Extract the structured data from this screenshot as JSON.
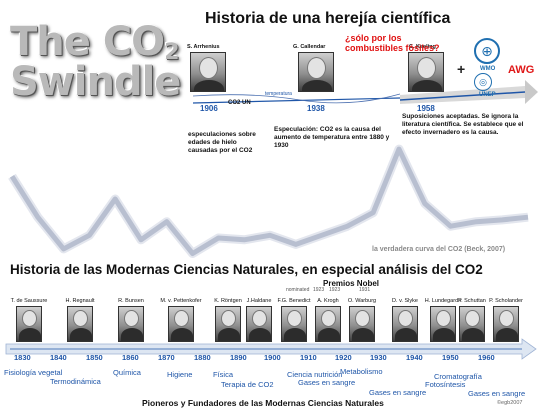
{
  "logo": {
    "line1": "The CO",
    "sub": "2",
    "line2": "Swindle"
  },
  "title": "Historia de una herejía científica",
  "top_scientists": [
    {
      "name": "S. Arrhenius",
      "year": "1906"
    },
    {
      "name": "G. Callendar",
      "year": "1938"
    },
    {
      "name": "C. Keeling",
      "year": "1958"
    }
  ],
  "question": "¿sólo por los combustibles fósiles?",
  "timeline_labels": {
    "co2_un": "CO2 UN",
    "temperature": "temperatura"
  },
  "descriptions": {
    "arrhenius": "especulaciones sobre edades de hielo causadas por el CO2",
    "callendar": "Especulación: CO2 es la causa del aumento de temperatura entre 1880 y 1930",
    "keeling": "Suposiciones aceptadas. Se ignora la literatura científica. Se establece que el efecto invernadero es la causa."
  },
  "orgs": {
    "wmo": "WMO",
    "unep": "UNEP",
    "awg": "AWG"
  },
  "beck_label": "la verdadera curva del CO2 (Beck, 2007)",
  "section_title": "Historia de las Modernas Ciencias Naturales, en especial análisis del CO2",
  "nobel": {
    "title": "Premios Nobel",
    "nominated": "nominated",
    "years": [
      "1923",
      "1923",
      "1931"
    ]
  },
  "scientists": [
    "T. de Saussure",
    "H. Regnault",
    "R. Bunsen",
    "M. v. Pettenkofer",
    "K. Röntgen",
    "J.Haldane",
    "F.G. Benedict",
    "A. Krogh",
    "O. Warburg",
    "D. v. Slyke",
    "H. Lundegardh",
    "P. Schuttan",
    "P. Scholander"
  ],
  "decades": [
    "1830",
    "1840",
    "1850",
    "1860",
    "1870",
    "1880",
    "1890",
    "1900",
    "1910",
    "1920",
    "1930",
    "1940",
    "1950",
    "1960"
  ],
  "fields": [
    "Fisiología vegetal",
    "Termodinámica",
    "Química",
    "Higiene",
    "Física",
    "Terapia de CO2",
    "Ciencia nutrición",
    "Gases en sangre",
    "Metabolismo",
    "Gases en sangre",
    "Cromatografía",
    "Fotosíntesis",
    "Gases en sangre"
  ],
  "footer": "Pioneros y Fundadores de las Modernas Ciencias Naturales",
  "copyright": "©egb2007",
  "chart_data": {
    "type": "line",
    "series": [
      {
        "values": [
          370,
          325,
          290,
          305,
          345,
          300,
          320,
          285,
          302,
          300,
          305,
          295,
          305,
          315,
          330,
          400,
          340,
          315,
          320,
          322,
          325
        ]
      }
    ]
  },
  "colors": {
    "accent_blue": "#1f56a8",
    "alert_red": "#e01010",
    "curve": "#b8bfd0"
  }
}
